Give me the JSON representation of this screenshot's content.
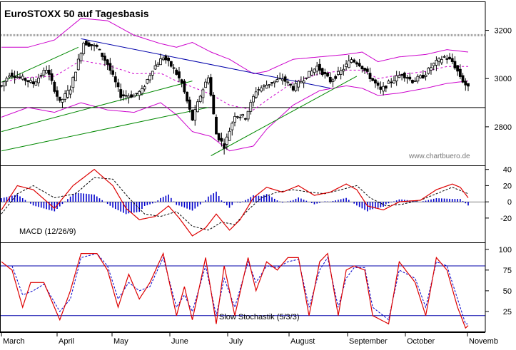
{
  "title": "EuroSTOXX 50 auf Tagesbasis",
  "watermark": "www.chartbuero.de",
  "colors": {
    "candle": "#000000",
    "bollinger": "#cc00cc",
    "ma_dashed": "#cc00cc",
    "trendline_down": "#0000aa",
    "trendline_up": "#008800",
    "macd_line": "#dd0000",
    "signal_line": "#000000",
    "histogram": "#0000cc",
    "stoch_k": "#dd0000",
    "stoch_d": "#0000cc",
    "level_line": "#0000aa"
  },
  "x_axis": {
    "months": [
      "March",
      "April",
      "May",
      "June",
      "July",
      "August",
      "September",
      "October",
      "Novemb"
    ]
  },
  "chart_data": [
    {
      "type": "candlestick",
      "title": "EuroSTOXX 50 auf Tagesbasis",
      "y_ticks": [
        2800,
        3000,
        3200
      ],
      "ylim": [
        2640,
        3320
      ],
      "x_count": 177,
      "horizontal_lines": [
        3180,
        2880
      ],
      "trendlines_down": [
        [
          [
            30,
            3165
          ],
          [
            124,
            2960
          ]
        ]
      ],
      "trendlines_up": [
        [
          [
            0,
            2985
          ],
          [
            29,
            3130
          ]
        ],
        [
          [
            0,
            2780
          ],
          [
            72,
            2990
          ]
        ],
        [
          [
            0,
            2700
          ],
          [
            78,
            2880
          ]
        ],
        [
          [
            79,
            2680
          ],
          [
            134,
            3010
          ]
        ]
      ],
      "anchors": [
        [
          0,
          2970
        ],
        [
          3,
          3020
        ],
        [
          8,
          3000
        ],
        [
          12,
          2980
        ],
        [
          17,
          3040
        ],
        [
          22,
          2900
        ],
        [
          26,
          2960
        ],
        [
          31,
          3150
        ],
        [
          36,
          3130
        ],
        [
          40,
          3060
        ],
        [
          45,
          2930
        ],
        [
          50,
          2930
        ],
        [
          53,
          2950
        ],
        [
          57,
          3040
        ],
        [
          61,
          3090
        ],
        [
          65,
          3040
        ],
        [
          68,
          2980
        ],
        [
          72,
          2830
        ],
        [
          75,
          2930
        ],
        [
          78,
          3010
        ],
        [
          81,
          2770
        ],
        [
          84,
          2720
        ],
        [
          88,
          2850
        ],
        [
          92,
          2840
        ],
        [
          96,
          2950
        ],
        [
          101,
          2980
        ],
        [
          106,
          3000
        ],
        [
          110,
          2960
        ],
        [
          115,
          3010
        ],
        [
          119,
          3050
        ],
        [
          124,
          2990
        ],
        [
          128,
          3030
        ],
        [
          132,
          3080
        ],
        [
          135,
          3060
        ],
        [
          138,
          3020
        ],
        [
          143,
          2950
        ],
        [
          147,
          2990
        ],
        [
          151,
          3020
        ],
        [
          155,
          2990
        ],
        [
          159,
          3010
        ],
        [
          163,
          3060
        ],
        [
          167,
          3090
        ],
        [
          170,
          3070
        ],
        [
          174,
          2990
        ],
        [
          176,
          2960
        ]
      ],
      "bollinger_upper": [
        [
          0,
          3130
        ],
        [
          10,
          3130
        ],
        [
          20,
          3160
        ],
        [
          30,
          3250
        ],
        [
          40,
          3240
        ],
        [
          50,
          3180
        ],
        [
          60,
          3145
        ],
        [
          66,
          3130
        ],
        [
          72,
          3150
        ],
        [
          79,
          3110
        ],
        [
          86,
          3080
        ],
        [
          95,
          3020
        ],
        [
          100,
          3030
        ],
        [
          110,
          3080
        ],
        [
          120,
          3090
        ],
        [
          130,
          3100
        ],
        [
          136,
          3110
        ],
        [
          142,
          3070
        ],
        [
          150,
          3090
        ],
        [
          160,
          3100
        ],
        [
          168,
          3120
        ],
        [
          176,
          3110
        ]
      ],
      "bollinger_lower": [
        [
          0,
          2840
        ],
        [
          10,
          2880
        ],
        [
          20,
          2860
        ],
        [
          30,
          2900
        ],
        [
          40,
          2870
        ],
        [
          50,
          2860
        ],
        [
          60,
          2900
        ],
        [
          66,
          2850
        ],
        [
          72,
          2780
        ],
        [
          79,
          2760
        ],
        [
          86,
          2700
        ],
        [
          95,
          2720
        ],
        [
          100,
          2790
        ],
        [
          110,
          2890
        ],
        [
          120,
          2950
        ],
        [
          130,
          2970
        ],
        [
          136,
          2960
        ],
        [
          142,
          2930
        ],
        [
          150,
          2940
        ],
        [
          160,
          2960
        ],
        [
          168,
          2980
        ],
        [
          176,
          2990
        ]
      ]
    },
    {
      "type": "line",
      "title": "MACD (12/26/9)",
      "y_ticks": [
        -20,
        0,
        20,
        40
      ],
      "ylim": [
        -50,
        45
      ],
      "macd": [
        [
          0,
          -10
        ],
        [
          6,
          20
        ],
        [
          12,
          15
        ],
        [
          20,
          -8
        ],
        [
          27,
          20
        ],
        [
          35,
          40
        ],
        [
          42,
          20
        ],
        [
          47,
          -8
        ],
        [
          52,
          -22
        ],
        [
          58,
          -18
        ],
        [
          63,
          -5
        ],
        [
          67,
          -20
        ],
        [
          72,
          -42
        ],
        [
          77,
          -32
        ],
        [
          81,
          -15
        ],
        [
          86,
          -35
        ],
        [
          90,
          -22
        ],
        [
          95,
          5
        ],
        [
          100,
          18
        ],
        [
          106,
          12
        ],
        [
          112,
          20
        ],
        [
          118,
          8
        ],
        [
          124,
          12
        ],
        [
          130,
          22
        ],
        [
          134,
          15
        ],
        [
          138,
          -5
        ],
        [
          144,
          -10
        ],
        [
          150,
          0
        ],
        [
          158,
          2
        ],
        [
          164,
          15
        ],
        [
          170,
          22
        ],
        [
          173,
          18
        ],
        [
          176,
          5
        ]
      ],
      "signal": [
        [
          0,
          -15
        ],
        [
          6,
          10
        ],
        [
          12,
          20
        ],
        [
          20,
          5
        ],
        [
          28,
          10
        ],
        [
          35,
          30
        ],
        [
          42,
          28
        ],
        [
          48,
          5
        ],
        [
          54,
          -15
        ],
        [
          60,
          -18
        ],
        [
          66,
          -12
        ],
        [
          72,
          -30
        ],
        [
          78,
          -35
        ],
        [
          83,
          -25
        ],
        [
          88,
          -28
        ],
        [
          93,
          -10
        ],
        [
          98,
          5
        ],
        [
          104,
          12
        ],
        [
          110,
          15
        ],
        [
          116,
          12
        ],
        [
          122,
          10
        ],
        [
          128,
          15
        ],
        [
          134,
          20
        ],
        [
          139,
          5
        ],
        [
          145,
          -5
        ],
        [
          151,
          -3
        ],
        [
          158,
          2
        ],
        [
          164,
          10
        ],
        [
          170,
          18
        ],
        [
          176,
          10
        ]
      ],
      "histogram_span": [
        0,
        176
      ]
    },
    {
      "type": "line",
      "title": "Slow Stochastik (5/3/3)",
      "y_ticks": [
        25,
        50,
        75,
        100
      ],
      "ylim": [
        0,
        105
      ],
      "level_lines": [
        80,
        20
      ],
      "k": [
        [
          0,
          85
        ],
        [
          4,
          75
        ],
        [
          8,
          30
        ],
        [
          11,
          60
        ],
        [
          16,
          60
        ],
        [
          22,
          15
        ],
        [
          26,
          50
        ],
        [
          30,
          95
        ],
        [
          36,
          95
        ],
        [
          40,
          75
        ],
        [
          44,
          30
        ],
        [
          48,
          70
        ],
        [
          52,
          40
        ],
        [
          56,
          60
        ],
        [
          61,
          95
        ],
        [
          66,
          20
        ],
        [
          69,
          55
        ],
        [
          72,
          15
        ],
        [
          77,
          90
        ],
        [
          81,
          10
        ],
        [
          84,
          80
        ],
        [
          88,
          20
        ],
        [
          93,
          90
        ],
        [
          96,
          50
        ],
        [
          100,
          85
        ],
        [
          104,
          75
        ],
        [
          108,
          90
        ],
        [
          112,
          90
        ],
        [
          116,
          20
        ],
        [
          120,
          85
        ],
        [
          123,
          95
        ],
        [
          127,
          20
        ],
        [
          130,
          75
        ],
        [
          133,
          80
        ],
        [
          137,
          75
        ],
        [
          140,
          20
        ],
        [
          146,
          10
        ],
        [
          150,
          85
        ],
        [
          156,
          60
        ],
        [
          160,
          20
        ],
        [
          164,
          90
        ],
        [
          168,
          75
        ],
        [
          172,
          30
        ],
        [
          175,
          5
        ],
        [
          176,
          8
        ]
      ],
      "d": [
        [
          0,
          80
        ],
        [
          4,
          80
        ],
        [
          8,
          45
        ],
        [
          12,
          50
        ],
        [
          16,
          58
        ],
        [
          22,
          25
        ],
        [
          26,
          40
        ],
        [
          30,
          90
        ],
        [
          36,
          95
        ],
        [
          40,
          80
        ],
        [
          44,
          40
        ],
        [
          48,
          60
        ],
        [
          52,
          50
        ],
        [
          56,
          55
        ],
        [
          61,
          90
        ],
        [
          66,
          30
        ],
        [
          69,
          45
        ],
        [
          72,
          25
        ],
        [
          77,
          80
        ],
        [
          81,
          20
        ],
        [
          84,
          65
        ],
        [
          88,
          30
        ],
        [
          93,
          85
        ],
        [
          96,
          60
        ],
        [
          100,
          80
        ],
        [
          104,
          78
        ],
        [
          108,
          85
        ],
        [
          112,
          88
        ],
        [
          116,
          30
        ],
        [
          120,
          75
        ],
        [
          123,
          90
        ],
        [
          127,
          30
        ],
        [
          130,
          65
        ],
        [
          133,
          78
        ],
        [
          137,
          78
        ],
        [
          140,
          30
        ],
        [
          146,
          15
        ],
        [
          150,
          75
        ],
        [
          156,
          65
        ],
        [
          160,
          30
        ],
        [
          164,
          85
        ],
        [
          168,
          80
        ],
        [
          172,
          40
        ],
        [
          175,
          10
        ],
        [
          176,
          10
        ]
      ]
    }
  ]
}
